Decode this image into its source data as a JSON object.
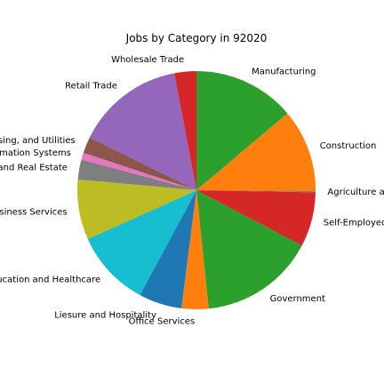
{
  "chart_data": {
    "type": "pie",
    "title": "Jobs by Category in 92020",
    "start_angle_deg": 90,
    "direction": "clockwise",
    "slices": [
      {
        "label": "Manufacturing",
        "value": 14.4,
        "color": "#2ca02c"
      },
      {
        "label": "Construction",
        "value": 11.8,
        "color": "#ff7f0e"
      },
      {
        "label": "Agriculture and Mining",
        "value": 0.1,
        "color": "#1f77b4"
      },
      {
        "label": "Self-Employed",
        "value": 7.7,
        "color": "#d62728"
      },
      {
        "label": "Government",
        "value": 16.3,
        "color": "#2ca02c"
      },
      {
        "label": "Office Services",
        "value": 3.8,
        "color": "#ff7f0e"
      },
      {
        "label": "Liesure and Hospitality",
        "value": 6.1,
        "color": "#1f77b4"
      },
      {
        "label": "Education and Healthcare",
        "value": 10.8,
        "color": "#17becf"
      },
      {
        "label": "Business Services",
        "value": 8.5,
        "color": "#bcbd22"
      },
      {
        "label": "Finance and Real Estate",
        "value": 2.8,
        "color": "#7f7f7f"
      },
      {
        "label": "Information Systems",
        "value": 1.0,
        "color": "#e377c2"
      },
      {
        "label": "Transportation, Warehousing, and Utilities",
        "value": 2.3,
        "color": "#8c564b"
      },
      {
        "label": "Retail Trade",
        "value": 15.3,
        "color": "#9467bd"
      },
      {
        "label": "Wholesale Trade",
        "value": 3.1,
        "color": "#d62728"
      }
    ]
  }
}
